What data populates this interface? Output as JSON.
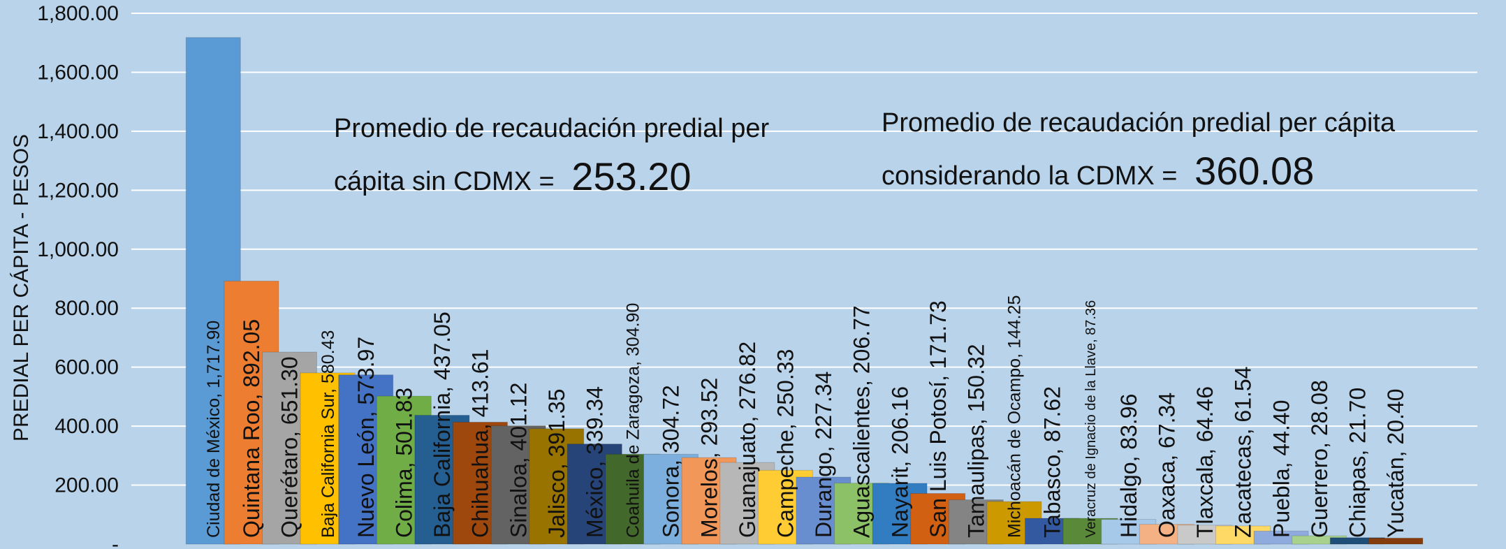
{
  "chart_data": {
    "type": "bar",
    "ylabel": "PREDIAL PER CÁPITA - PESOS",
    "ylim": [
      0,
      1800
    ],
    "y_ticks": [
      "-",
      "200.00",
      "400.00",
      "600.00",
      "800.00",
      "1,000.00",
      "1,200.00",
      "1,400.00",
      "1,600.00",
      "1,800.00"
    ],
    "y_tick_values": [
      0,
      200,
      400,
      600,
      800,
      1000,
      1200,
      1400,
      1600,
      1800
    ],
    "grid": true,
    "annotations": [
      {
        "line1": "Promedio de recaudación predial per",
        "line2": "cápita sin CDMX = ",
        "value": "253.20"
      },
      {
        "line1": "Promedio de recaudación predial per cápita",
        "line2": "considerando la CDMX = ",
        "value": "360.08"
      }
    ],
    "bars": [
      {
        "label": "Ciudad de México, 1,717.90",
        "value": 1717.9,
        "color": "#5b9bd5"
      },
      {
        "label": "Quintana Roo, 892.05",
        "value": 892.05,
        "color": "#ed7d31"
      },
      {
        "label": "Querétaro, 651.30",
        "value": 651.3,
        "color": "#a5a5a5"
      },
      {
        "label": "Baja California Sur, 580.43",
        "value": 580.43,
        "color": "#ffc000"
      },
      {
        "label": "Nuevo León, 573.97",
        "value": 573.97,
        "color": "#4472c4"
      },
      {
        "label": "Colima, 501.83",
        "value": 501.83,
        "color": "#70ad47"
      },
      {
        "label": "Baja California, 437.05",
        "value": 437.05,
        "color": "#255e91"
      },
      {
        "label": "Chihuahua, 413.61",
        "value": 413.61,
        "color": "#9e480e"
      },
      {
        "label": "Sinaloa, 401.12",
        "value": 401.12,
        "color": "#636363"
      },
      {
        "label": "Jalisco, 391.35",
        "value": 391.35,
        "color": "#997300"
      },
      {
        "label": "México, 339.34",
        "value": 339.34,
        "color": "#264478"
      },
      {
        "label": "Coahuila de Zaragoza, 304.90",
        "value": 304.9,
        "color": "#43682b"
      },
      {
        "label": "Sonora, 304.72",
        "value": 304.72,
        "color": "#7cafdd"
      },
      {
        "label": "Morelos, 293.52",
        "value": 293.52,
        "color": "#f1975a"
      },
      {
        "label": "Guanajuato, 276.82",
        "value": 276.82,
        "color": "#b7b7b7"
      },
      {
        "label": "Campeche, 250.33",
        "value": 250.33,
        "color": "#ffcd33"
      },
      {
        "label": "Durango, 227.34",
        "value": 227.34,
        "color": "#698ed0"
      },
      {
        "label": "Aguascalientes, 206.77",
        "value": 206.77,
        "color": "#8cc168"
      },
      {
        "label": "Nayarit, 206.16",
        "value": 206.16,
        "color": "#327dc2"
      },
      {
        "label": "San Luis Potosí, 171.73",
        "value": 171.73,
        "color": "#d26012"
      },
      {
        "label": "Tamaulipas, 150.32",
        "value": 150.32,
        "color": "#848484"
      },
      {
        "label": "Michoacán de Ocampo, 144.25",
        "value": 144.25,
        "color": "#cc9a00"
      },
      {
        "label": "Tabasco, 87.62",
        "value": 87.62,
        "color": "#335aa1"
      },
      {
        "label": "Veracruz de Ignacio de la Llave, 87.36",
        "value": 87.36,
        "color": "#5a8a39"
      },
      {
        "label": "Hidalgo, 83.96",
        "value": 83.96,
        "color": "#a6c8e9"
      },
      {
        "label": "Oaxaca, 67.34",
        "value": 67.34,
        "color": "#f4b183"
      },
      {
        "label": "Tlaxcala, 64.46",
        "value": 64.46,
        "color": "#c9c9c9"
      },
      {
        "label": "Zacatecas, 61.54",
        "value": 61.54,
        "color": "#ffd966"
      },
      {
        "label": "Puebla, 44.40",
        "value": 44.4,
        "color": "#8faadc"
      },
      {
        "label": "Guerrero, 28.08",
        "value": 28.08,
        "color": "#a9d18e"
      },
      {
        "label": "Chiapas, 21.70",
        "value": 21.7,
        "color": "#1f4e79"
      },
      {
        "label": "Yucatán, 20.40",
        "value": 20.4,
        "color": "#843c0c"
      }
    ]
  }
}
